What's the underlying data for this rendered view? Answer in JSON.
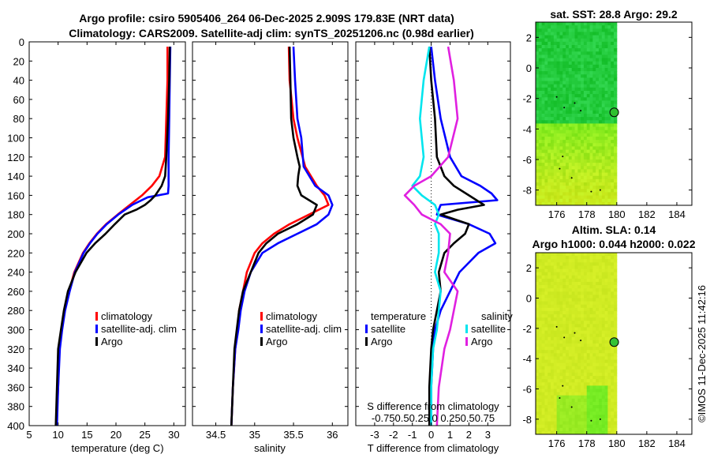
{
  "header": {
    "title_line1": "Argo profile: csiro 5905406_264 06-Dec-2025 2.909S 179.83E (NRT data)",
    "title_line2": "Climatology: CARS2009. Satellite-adj clim: synTS_20251206.nc (0.98d earlier)"
  },
  "colors": {
    "climatology": "#ff0000",
    "satellite": "#0000ff",
    "argo": "#000000",
    "sal_satellite": "#00e5ee",
    "sal_argo": "#e020e0"
  },
  "depth_ticks": [
    "0",
    "20",
    "40",
    "60",
    "80",
    "100",
    "120",
    "140",
    "160",
    "180",
    "200",
    "220",
    "240",
    "260",
    "280",
    "300",
    "320",
    "340",
    "360",
    "380",
    "400"
  ],
  "chart_data": [
    {
      "type": "line",
      "panel": "temperature",
      "xlabel": "temperature (deg C)",
      "ylabel": "",
      "xlim": [
        5,
        32
      ],
      "ylim": [
        0,
        400
      ],
      "x_ticks": [
        "5",
        "10",
        "15",
        "20",
        "25",
        "30"
      ],
      "x_tick_values": [
        5,
        10,
        15,
        20,
        25,
        30
      ],
      "legend": [
        "climatology",
        "satellite-adj. clim",
        "Argo"
      ],
      "series": [
        {
          "name": "climatology",
          "color": "#ff0000",
          "depth": [
            5,
            40,
            80,
            120,
            140,
            150,
            160,
            170,
            180,
            190,
            200,
            210,
            220,
            240,
            260,
            280,
            300,
            320,
            360,
            400
          ],
          "values": [
            28.9,
            28.9,
            28.7,
            28.5,
            27.5,
            26.2,
            24.5,
            22.4,
            20.3,
            18.3,
            16.7,
            15.4,
            14.3,
            12.8,
            11.9,
            11.1,
            10.6,
            10.2,
            10.0,
            9.7
          ]
        },
        {
          "name": "satellite-adj. clim",
          "color": "#0000ff",
          "depth": [
            5,
            40,
            80,
            120,
            150,
            158,
            162,
            170,
            180,
            190,
            200,
            210,
            220,
            240,
            260,
            280,
            300,
            320,
            360,
            400
          ],
          "values": [
            29.4,
            29.3,
            29.2,
            29.1,
            29.1,
            29.0,
            25.5,
            22.8,
            20.4,
            18.4,
            16.8,
            15.5,
            14.4,
            12.9,
            12.0,
            11.2,
            10.7,
            10.3,
            10.0,
            9.8
          ]
        },
        {
          "name": "Argo",
          "color": "#000000",
          "depth": [
            5,
            40,
            80,
            120,
            140,
            150,
            160,
            165,
            170,
            175,
            180,
            190,
            200,
            210,
            220,
            240,
            260,
            280,
            300,
            320,
            360,
            400
          ],
          "values": [
            29.3,
            29.2,
            29.0,
            28.7,
            28.5,
            27.9,
            26.8,
            26.0,
            25.0,
            23.5,
            21.5,
            19.8,
            18.2,
            16.4,
            14.9,
            13.0,
            11.7,
            11.0,
            10.5,
            10.0,
            9.8,
            9.6
          ]
        }
      ]
    },
    {
      "type": "line",
      "panel": "salinity",
      "xlabel": "salinity",
      "ylabel": "",
      "xlim": [
        34.2,
        36.2
      ],
      "ylim": [
        0,
        400
      ],
      "x_ticks": [
        "34.5",
        "35",
        "35.5",
        "36"
      ],
      "x_tick_values": [
        34.5,
        35,
        35.5,
        36
      ],
      "legend": [
        "climatology",
        "satellite-adj. clim",
        "Argo"
      ],
      "series": [
        {
          "name": "climatology",
          "color": "#ff0000",
          "depth": [
            5,
            40,
            80,
            100,
            130,
            150,
            160,
            170,
            180,
            190,
            200,
            210,
            220,
            240,
            260,
            280,
            300,
            320,
            360,
            400
          ],
          "values": [
            35.44,
            35.45,
            35.5,
            35.55,
            35.65,
            35.8,
            35.9,
            35.95,
            35.7,
            35.45,
            35.25,
            35.1,
            35.0,
            34.9,
            34.85,
            34.8,
            34.78,
            34.75,
            34.72,
            34.7
          ]
        },
        {
          "name": "satellite-adj. clim",
          "color": "#0000ff",
          "depth": [
            5,
            40,
            80,
            100,
            130,
            150,
            160,
            170,
            180,
            190,
            200,
            210,
            220,
            240,
            260,
            280,
            300,
            320,
            360,
            400
          ],
          "values": [
            35.5,
            35.52,
            35.55,
            35.6,
            35.63,
            35.78,
            35.95,
            36.0,
            35.95,
            35.8,
            35.55,
            35.3,
            35.1,
            34.95,
            34.87,
            34.82,
            34.79,
            34.75,
            34.72,
            34.7
          ]
        },
        {
          "name": "Argo",
          "color": "#000000",
          "depth": [
            5,
            40,
            80,
            100,
            120,
            130,
            140,
            150,
            160,
            170,
            180,
            190,
            200,
            210,
            220,
            240,
            260,
            280,
            300,
            320,
            360,
            400
          ],
          "values": [
            35.45,
            35.46,
            35.47,
            35.5,
            35.55,
            35.58,
            35.56,
            35.55,
            35.6,
            35.8,
            35.75,
            35.55,
            35.3,
            35.15,
            35.05,
            34.95,
            34.85,
            34.8,
            34.77,
            34.74,
            34.72,
            34.7
          ]
        }
      ]
    },
    {
      "type": "line",
      "panel": "difference",
      "xlabel": "T difference from climatology",
      "xlabel_top": "S difference from climatology",
      "ylabel": "",
      "xlim": [
        -4,
        4.2
      ],
      "ylim": [
        0,
        400
      ],
      "x_ticks": [
        "-3",
        "-2",
        "-1",
        "0",
        "1",
        "2",
        "3"
      ],
      "x_tick_values": [
        -3,
        -2,
        -1,
        0,
        1,
        2,
        3
      ],
      "s_ticks_label": "-0.750.50.25 0 0.250.50.75",
      "legend_temperature": [
        "temperature",
        "satellite",
        "Argo"
      ],
      "legend_salinity": [
        "salinity",
        "satellite",
        "Argo"
      ],
      "series": [
        {
          "name": "T satellite",
          "color": "#0000ff",
          "depth": [
            5,
            40,
            80,
            120,
            140,
            150,
            158,
            165,
            170,
            180,
            190,
            200,
            210,
            220,
            240,
            260,
            280,
            300,
            320,
            360,
            400
          ],
          "values": [
            0.0,
            0.2,
            0.5,
            1.0,
            1.6,
            2.6,
            3.2,
            3.5,
            0.5,
            0.3,
            2.0,
            3.1,
            3.4,
            2.5,
            1.5,
            1.0,
            0.5,
            0.2,
            0.1,
            0.0,
            0.0
          ]
        },
        {
          "name": "T Argo",
          "color": "#000000",
          "depth": [
            5,
            40,
            80,
            120,
            140,
            150,
            160,
            170,
            175,
            180,
            190,
            200,
            210,
            220,
            240,
            260,
            280,
            300,
            320,
            360,
            400
          ],
          "values": [
            -0.1,
            0.0,
            0.2,
            0.3,
            0.7,
            1.2,
            2.0,
            2.8,
            1.4,
            0.5,
            2.0,
            1.8,
            1.2,
            0.7,
            0.4,
            0.5,
            0.3,
            0.1,
            0.0,
            -0.1,
            -0.1
          ]
        },
        {
          "name": "S satellite",
          "color": "#00e5ee",
          "depth": [
            5,
            40,
            80,
            120,
            140,
            150,
            160,
            170,
            180,
            190,
            200,
            220,
            240,
            260,
            280,
            300,
            320,
            360,
            400
          ],
          "values": [
            -0.1,
            -0.4,
            -0.6,
            -0.4,
            -0.6,
            -1.0,
            -0.5,
            0.2,
            0.4,
            0.2,
            0.4,
            0.4,
            0.2,
            0.5,
            0.4,
            0.3,
            0.1,
            0.0,
            0.0
          ]
        },
        {
          "name": "S Argo",
          "color": "#e020e0",
          "depth": [
            5,
            40,
            80,
            120,
            140,
            150,
            160,
            170,
            180,
            190,
            200,
            220,
            240,
            260,
            280,
            300,
            320,
            360,
            400
          ],
          "values": [
            0.9,
            1.2,
            1.4,
            0.9,
            0.0,
            -0.9,
            -1.4,
            -0.9,
            -0.5,
            0.5,
            1.0,
            0.9,
            0.7,
            1.4,
            1.2,
            1.0,
            0.7,
            0.4,
            0.3
          ]
        }
      ]
    },
    {
      "type": "heatmap",
      "panel": "sst_map",
      "title": "sat. SST: 28.8 Argo: 29.2",
      "xlim": [
        174.6,
        185
      ],
      "ylim": [
        -9,
        3
      ],
      "x_ticks": [
        "176",
        "178",
        "180",
        "182",
        "184"
      ],
      "x_tick_values": [
        176,
        178,
        180,
        182,
        184
      ],
      "y_ticks": [
        "2",
        "0",
        "-2",
        "-4",
        "-6",
        "-8"
      ],
      "y_tick_values": [
        2,
        0,
        -2,
        -4,
        -6,
        -8
      ],
      "data_extent_lon": [
        174.6,
        180
      ],
      "marker": {
        "lon": 179.83,
        "lat": -2.909
      }
    },
    {
      "type": "heatmap",
      "panel": "sla_map",
      "title_line1": "Altim. SLA: 0.14",
      "title_line2": "Argo h1000: 0.044 h2000: 0.022",
      "xlim": [
        174.6,
        185
      ],
      "ylim": [
        -9,
        3
      ],
      "x_ticks": [
        "176",
        "178",
        "180",
        "182",
        "184"
      ],
      "x_tick_values": [
        176,
        178,
        180,
        182,
        184
      ],
      "y_ticks": [
        "2",
        "0",
        "-2",
        "-4",
        "-6",
        "-8"
      ],
      "y_tick_values": [
        2,
        0,
        -2,
        -4,
        -6,
        -8
      ],
      "data_extent_lon": [
        174.6,
        180
      ],
      "marker": {
        "lon": 179.83,
        "lat": -2.909
      }
    }
  ],
  "stamp": "©IMOS 11-Dec-2025 11:42:16"
}
